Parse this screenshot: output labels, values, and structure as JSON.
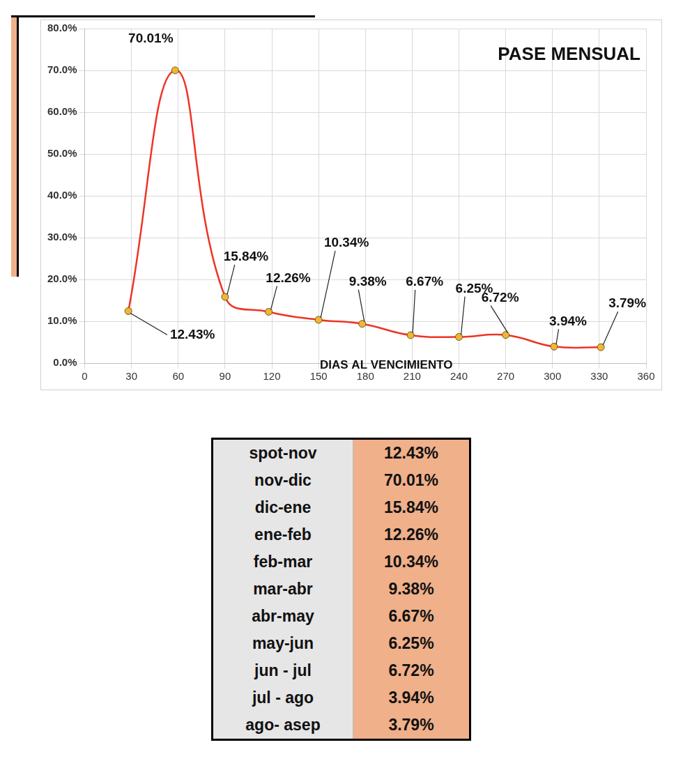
{
  "chart_data": {
    "type": "line",
    "title": "PASE MENSUAL",
    "x_label": "DIAS AL VENCIMIENTO",
    "x": [
      28,
      58,
      90,
      118,
      150,
      178,
      209,
      240,
      270,
      301,
      331
    ],
    "values": [
      12.43,
      70.01,
      15.84,
      12.26,
      10.34,
      9.38,
      6.67,
      6.25,
      6.72,
      3.94,
      3.79
    ],
    "value_labels": [
      "12.43%",
      "70.01%",
      "15.84%",
      "12.26%",
      "10.34%",
      "9.38%",
      "6.67%",
      "6.25%",
      "6.72%",
      "3.94%",
      "3.79%"
    ],
    "color": "#ee3424",
    "marker": "circle",
    "line_style": "solid",
    "xlim": [
      0,
      360
    ],
    "xticks": [
      0,
      30,
      60,
      90,
      120,
      150,
      180,
      210,
      240,
      270,
      300,
      330,
      360
    ],
    "ylim": [
      0,
      80
    ],
    "yticks": [
      {
        "value": 0,
        "label": "0.0%"
      },
      {
        "value": 10,
        "label": "10.0%"
      },
      {
        "value": 20,
        "label": "20.0%"
      },
      {
        "value": 30,
        "label": "30.0%"
      },
      {
        "value": 40,
        "label": "40.0%"
      },
      {
        "value": 50,
        "label": "50.0%"
      },
      {
        "value": 60,
        "label": "60.0%"
      },
      {
        "value": 70,
        "label": "70.0%"
      },
      {
        "value": 80,
        "label": "80.0%"
      }
    ],
    "grid": true,
    "data_labels": true
  },
  "table": {
    "rows": [
      [
        "spot-nov",
        "12.43%"
      ],
      [
        "nov-dic",
        "70.01%"
      ],
      [
        "dic-ene",
        "15.84%"
      ],
      [
        "ene-feb",
        "12.26%"
      ],
      [
        "feb-mar",
        "10.34%"
      ],
      [
        "mar-abr",
        "9.38%"
      ],
      [
        "abr-may",
        "6.67%"
      ],
      [
        "may-jun",
        "6.25%"
      ],
      [
        "jun - jul",
        "6.72%"
      ],
      [
        "jul - ago",
        "3.94%"
      ],
      [
        "ago- asep",
        "3.79%"
      ]
    ]
  }
}
